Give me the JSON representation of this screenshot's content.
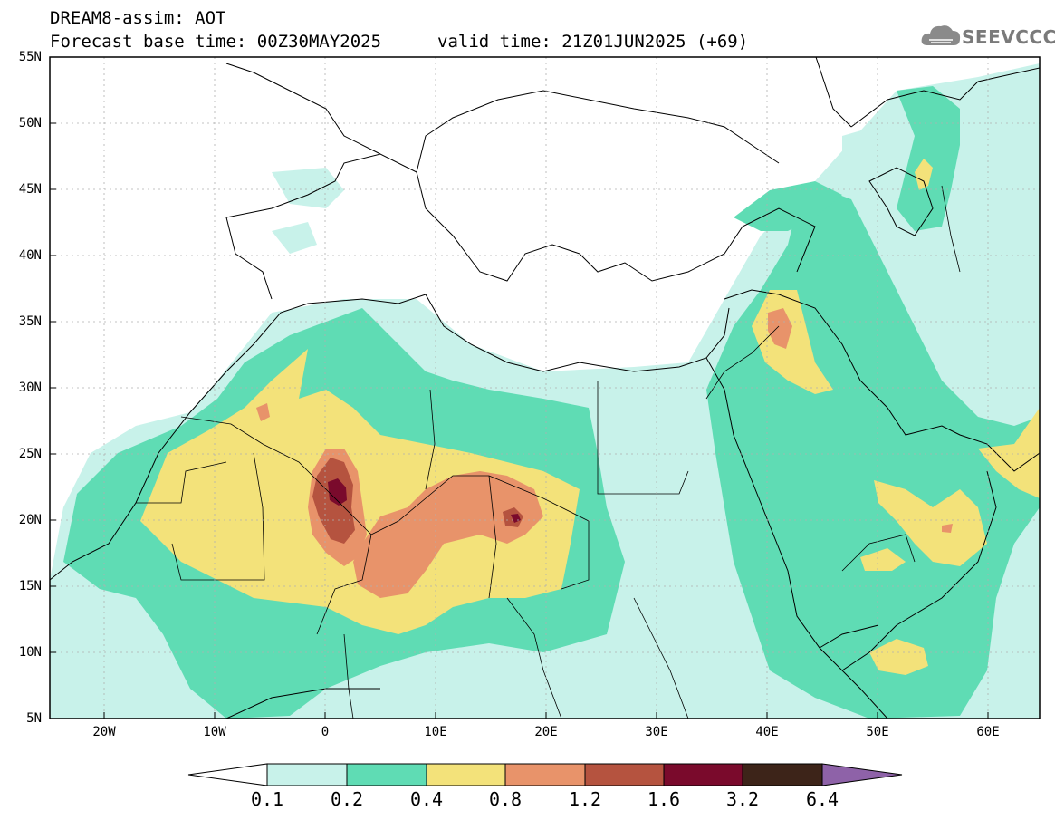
{
  "header": {
    "title": "DREAM8-assim: AOT",
    "base_time": "Forecast base time: 00Z30MAY2025",
    "valid_time": "valid time: 21Z01JUN2025 (+69)",
    "logo_text": "SEEVCCC",
    "logo_icon": "cloud-icon"
  },
  "axes": {
    "lat_labels": [
      "55N",
      "50N",
      "45N",
      "40N",
      "35N",
      "30N",
      "25N",
      "20N",
      "15N",
      "10N",
      "5N"
    ],
    "lon_labels": [
      "20W",
      "10W",
      "0",
      "10E",
      "20E",
      "30E",
      "40E",
      "50E",
      "60E"
    ]
  },
  "colorbar": {
    "labels": [
      "0.1",
      "0.2",
      "0.4",
      "0.8",
      "1.2",
      "1.6",
      "3.2",
      "6.4"
    ],
    "colors": [
      "#ffffff",
      "#c8f2ea",
      "#5fdcb4",
      "#f3e27a",
      "#e8936a",
      "#b5533f",
      "#7a0a2c",
      "#3d2419",
      "#8e62a8"
    ]
  },
  "colors": {
    "aot_0_1": "#c8f2ea",
    "aot_0_2": "#5fdcb4",
    "aot_0_4": "#f3e27a",
    "aot_0_8": "#e8936a",
    "aot_1_2": "#b5533f",
    "aot_1_6": "#7a0a2c"
  }
}
